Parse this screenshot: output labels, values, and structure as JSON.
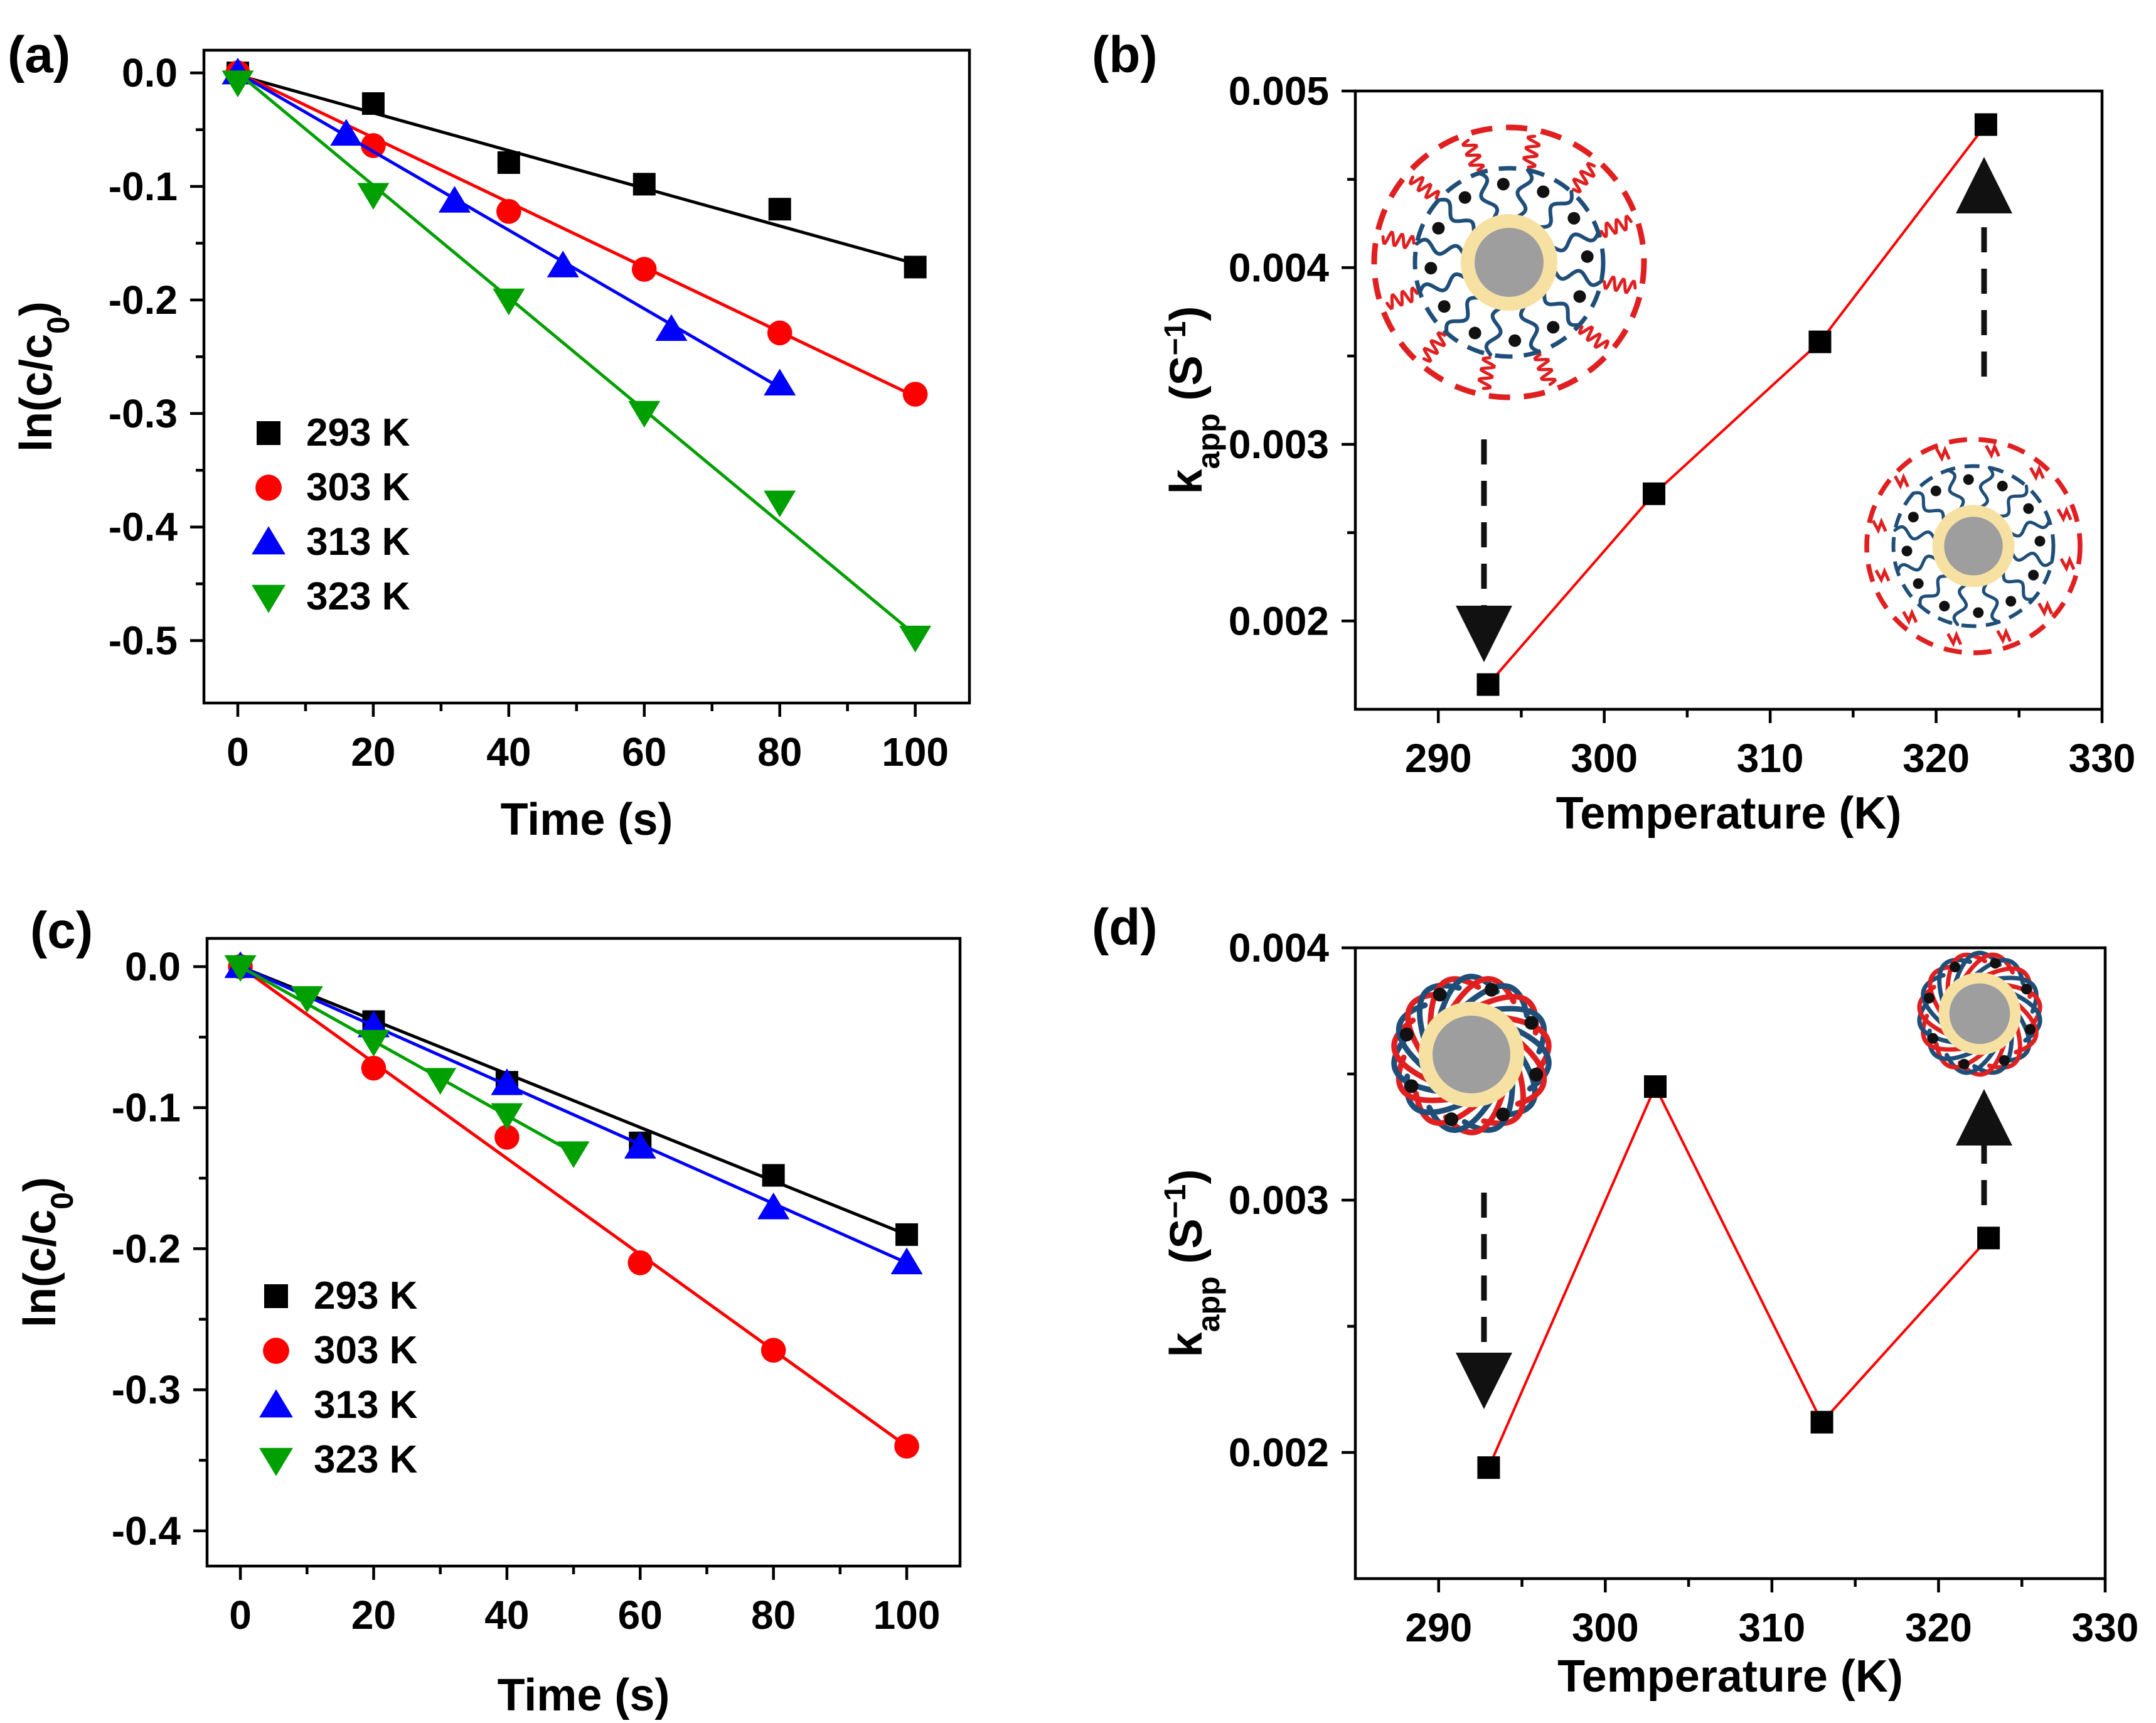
{
  "figure": {
    "colors": {
      "black": "#000000",
      "red": "#ff0000",
      "blue": "#0000ff",
      "green": "#00a000",
      "shell_blue": "#1f4e79",
      "shell_red": "#e02020",
      "core_gray": "#9e9e9e",
      "core_ring": "#f7e1a2"
    }
  },
  "chart_data": [
    {
      "panel": "(a)",
      "type": "scatter",
      "xlabel": "Time (s)",
      "ylabel": "ln(c/c0)",
      "xlim": [
        -5,
        108
      ],
      "ylim": [
        -0.555,
        0.02
      ],
      "xticks": [
        "0",
        "20",
        "40",
        "60",
        "80",
        "100"
      ],
      "yticks": [
        "0.0",
        "-0.1",
        "-0.2",
        "-0.3",
        "-0.4",
        "-0.5"
      ],
      "series": [
        {
          "name": "293 K",
          "marker": "square",
          "color": "#000000",
          "x": [
            0,
            20,
            40,
            60,
            80,
            100
          ],
          "y": [
            0.0,
            -0.027,
            -0.079,
            -0.098,
            -0.12,
            -0.171
          ],
          "fit": [
            [
              0,
              -0.002
            ],
            [
              100,
              -0.168
            ]
          ]
        },
        {
          "name": "303 K",
          "marker": "circle",
          "color": "#ff0000",
          "x": [
            0,
            20,
            40,
            60,
            80,
            100
          ],
          "y": [
            0.0,
            -0.064,
            -0.122,
            -0.173,
            -0.229,
            -0.283
          ],
          "fit": [
            [
              0,
              0.0
            ],
            [
              100,
              -0.285
            ]
          ]
        },
        {
          "name": "313 K",
          "marker": "triangle-up",
          "color": "#0000ff",
          "x": [
            0,
            16,
            32,
            48,
            64,
            80
          ],
          "y": [
            0.0,
            -0.054,
            -0.113,
            -0.17,
            -0.226,
            -0.274
          ],
          "fit": [
            [
              0,
              0.0
            ],
            [
              80,
              -0.277
            ]
          ]
        },
        {
          "name": "323 K",
          "marker": "triangle-down",
          "color": "#00a000",
          "x": [
            0,
            20,
            40,
            60,
            80,
            100
          ],
          "y": [
            -0.008,
            -0.107,
            -0.2,
            -0.299,
            -0.378,
            -0.497
          ],
          "fit": [
            [
              0,
              0.0
            ],
            [
              100,
              -0.495
            ]
          ]
        }
      ],
      "legend": [
        "293 K",
        "303 K",
        "313 K",
        "323 K"
      ],
      "legend_position": "bottom-left"
    },
    {
      "panel": "(b)",
      "type": "line",
      "xlabel": "Temperature (K)",
      "ylabel": "kapp (S−1)",
      "xlim": [
        285,
        330
      ],
      "ylim": [
        0.0015,
        0.005
      ],
      "xticks": [
        "290",
        "300",
        "310",
        "320",
        "330"
      ],
      "yticks": [
        "0.002",
        "0.003",
        "0.004",
        "0.005"
      ],
      "series": [
        {
          "name": "kapp",
          "marker": "square",
          "color": "#ff0000",
          "x": [
            293,
            303,
            313,
            323
          ],
          "y": [
            0.00164,
            0.00272,
            0.00358,
            0.00481
          ]
        }
      ],
      "annotations": [
        "expanded shell schematic above 293 K point",
        "collapsed shell schematic below 323 K point"
      ]
    },
    {
      "panel": "(c)",
      "type": "scatter",
      "xlabel": "Time (s)",
      "ylabel": "ln(c/c0)",
      "xlim": [
        -5,
        108
      ],
      "ylim": [
        -0.425,
        0.02
      ],
      "xticks": [
        "0",
        "20",
        "40",
        "60",
        "80",
        "100"
      ],
      "yticks": [
        "0.0",
        "-0.1",
        "-0.2",
        "-0.3",
        "-0.4"
      ],
      "series": [
        {
          "name": "293 K",
          "marker": "square",
          "color": "#000000",
          "x": [
            0,
            20,
            40,
            60,
            80,
            100
          ],
          "y": [
            0.0,
            -0.039,
            -0.082,
            -0.125,
            -0.148,
            -0.19
          ],
          "fit": [
            [
              0,
              0.0
            ],
            [
              100,
              -0.19
            ]
          ]
        },
        {
          "name": "303 K",
          "marker": "circle",
          "color": "#ff0000",
          "x": [
            0,
            20,
            40,
            60,
            80,
            100
          ],
          "y": [
            0.0,
            -0.072,
            -0.121,
            -0.21,
            -0.272,
            -0.34
          ],
          "fit": [
            [
              0,
              0.0
            ],
            [
              100,
              -0.34
            ]
          ]
        },
        {
          "name": "313 K",
          "marker": "triangle-up",
          "color": "#0000ff",
          "x": [
            0,
            20,
            40,
            60,
            80,
            100
          ],
          "y": [
            0.0,
            -0.042,
            -0.083,
            -0.128,
            -0.171,
            -0.21
          ],
          "fit": [
            [
              0,
              0.0
            ],
            [
              100,
              -0.21
            ]
          ]
        },
        {
          "name": "323 K",
          "marker": "triangle-down",
          "color": "#00a000",
          "x": [
            0,
            10,
            20,
            30,
            40,
            50
          ],
          "y": [
            0.0,
            -0.022,
            -0.053,
            -0.08,
            -0.105,
            -0.132
          ],
          "fit": [
            [
              0,
              0.0
            ],
            [
              50,
              -0.132
            ]
          ]
        }
      ],
      "legend": [
        "293 K",
        "303 K",
        "313 K",
        "323 K"
      ],
      "legend_position": "bottom-left"
    },
    {
      "panel": "(d)",
      "type": "line",
      "xlabel": "Temperature (K)",
      "ylabel": "kapp (S−1)",
      "xlim": [
        285,
        330
      ],
      "ylim": [
        0.0015,
        0.004
      ],
      "xticks": [
        "290",
        "300",
        "310",
        "320",
        "330"
      ],
      "yticks": [
        "0.002",
        "0.003",
        "0.004"
      ],
      "series": [
        {
          "name": "kapp",
          "marker": "square",
          "color": "#ff0000",
          "x": [
            293,
            303,
            313,
            323
          ],
          "y": [
            0.00194,
            0.00345,
            0.00212,
            0.00285
          ]
        }
      ],
      "annotations": [
        "tangled shell schematic above 293 K point",
        "compact shell schematic above 323 K point"
      ]
    }
  ]
}
